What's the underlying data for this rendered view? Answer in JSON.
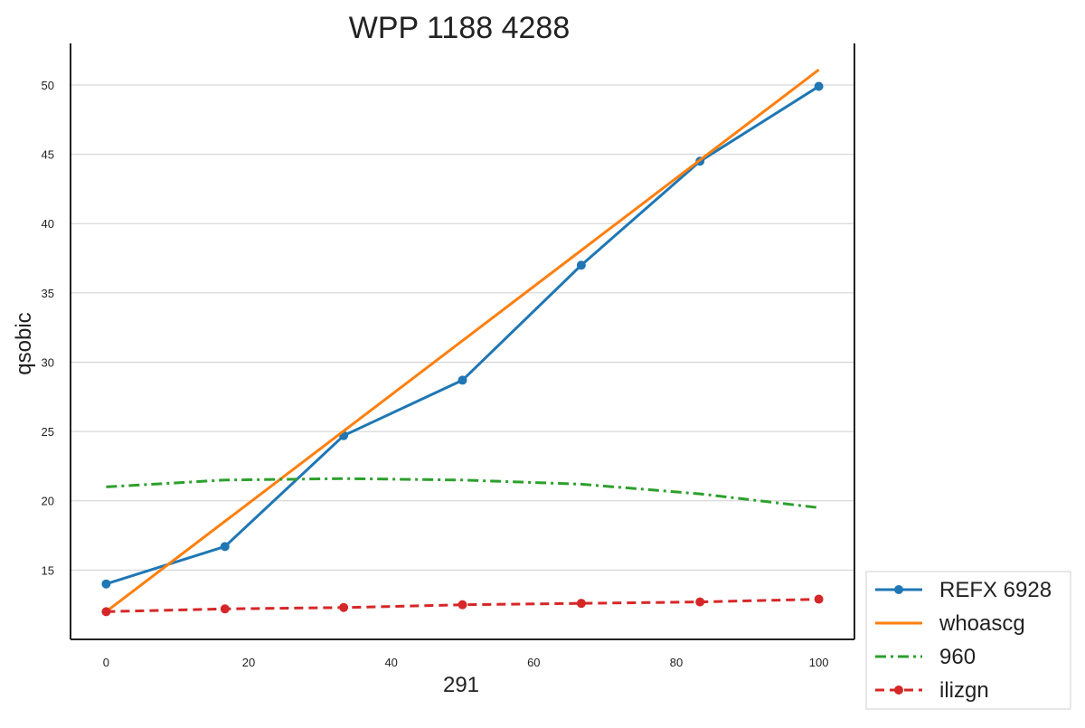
{
  "chart_data": {
    "type": "line",
    "title": "WPP 1188 4288",
    "xlabel": "291",
    "ylabel": "qsobic",
    "xlim": [
      -5,
      105
    ],
    "ylim": [
      10,
      53
    ],
    "x_ticks": [
      0,
      20,
      40,
      60,
      80,
      100
    ],
    "y_ticks": [
      15,
      20,
      25,
      30,
      35,
      40,
      45,
      50
    ],
    "grid": "y",
    "legend_position": "bottom-right outside",
    "series": [
      {
        "name": "REFX 6928",
        "color": "#1f77b4",
        "style": "solid",
        "marker": "circle",
        "x": [
          0,
          16.67,
          33.33,
          50,
          66.67,
          83.33,
          100
        ],
        "y": [
          14.0,
          16.7,
          24.7,
          28.7,
          37.0,
          44.5,
          49.9
        ]
      },
      {
        "name": "whoascg",
        "color": "#ff7f0e",
        "style": "solid",
        "marker": "none",
        "x": [
          0,
          100
        ],
        "y": [
          12.0,
          51.1
        ]
      },
      {
        "name": "960",
        "color": "#2ca02c",
        "style": "dashdot",
        "marker": "none",
        "x": [
          0,
          16.67,
          33.33,
          50,
          66.67,
          83.33,
          100
        ],
        "y": [
          21.0,
          21.5,
          21.6,
          21.5,
          21.2,
          20.5,
          19.5
        ]
      },
      {
        "name": "ilizgn",
        "color": "#d62728",
        "style": "dashed",
        "marker": "circle",
        "x": [
          0,
          16.67,
          33.33,
          50,
          66.67,
          83.33,
          100
        ],
        "y": [
          12.0,
          12.2,
          12.3,
          12.5,
          12.6,
          12.7,
          12.9
        ]
      }
    ]
  }
}
